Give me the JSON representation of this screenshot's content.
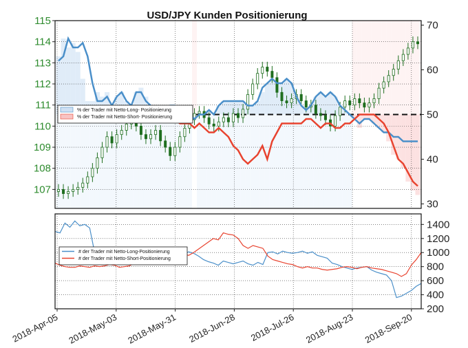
{
  "chart_data": [
    {
      "type": "line",
      "title": "USD/JPY Kunden Positionierung",
      "left_axis": {
        "ylim": [
          106.1,
          115
        ],
        "ticks": [
          107,
          108,
          109,
          110,
          111,
          112,
          113,
          114,
          115
        ],
        "color": "#2e8b2e"
      },
      "right_axis": {
        "ylim": [
          29,
          71
        ],
        "ticks": [
          30,
          40,
          50,
          60,
          70
        ]
      },
      "x_ticks": [
        "2018-Apr-05",
        "2018-May-03",
        "2018-May-31",
        "2018-Jun-28",
        "2018-Jul-26",
        "2018-Aug-23",
        "2018-Sep-20"
      ],
      "reference_line": 50,
      "price_close": [
        107.0,
        106.8,
        106.9,
        107.0,
        107.1,
        107.3,
        107.6,
        108.0,
        108.5,
        109.0,
        109.5,
        109.2,
        109.6,
        109.8,
        110.1,
        110.4,
        110.0,
        109.6,
        109.4,
        109.6,
        109.8,
        109.3,
        109.0,
        108.6,
        109.0,
        109.5,
        109.9,
        110.3,
        110.6,
        110.7,
        110.4,
        110.1,
        110.0,
        110.2,
        110.4,
        110.2,
        110.6,
        110.4,
        110.8,
        111.5,
        112.0,
        112.5,
        112.8,
        112.6,
        112.3,
        111.6,
        111.2,
        111.1,
        111.3,
        111.5,
        111.2,
        110.9,
        111.0,
        110.6,
        110.5,
        110.3,
        110.0,
        110.5,
        110.9,
        111.2,
        111.0,
        111.3,
        111.1,
        110.9,
        111.1,
        111.3,
        111.8,
        112.1,
        112.4,
        112.7,
        113.1,
        113.4,
        113.7,
        114.0,
        113.9
      ],
      "price_long_pct": [
        63,
        67,
        65,
        66,
        64,
        58,
        53,
        53,
        55,
        54,
        55,
        52,
        54,
        55,
        53,
        52,
        55,
        56,
        54,
        52,
        50,
        51,
        51,
        52,
        52,
        50,
        50,
        50,
        49,
        50,
        50,
        51,
        50,
        52,
        53,
        53,
        53,
        53,
        53,
        52,
        52,
        53,
        55,
        57,
        58,
        57,
        57,
        58,
        57,
        54,
        52,
        51,
        52,
        54,
        55,
        54,
        55,
        54,
        52,
        51,
        50,
        49,
        47,
        49,
        49,
        48,
        47,
        46,
        44,
        41,
        40,
        38,
        35,
        33,
        32
      ],
      "series": [
        {
          "name": "% der Trader  mit Netto-Long- Positionierung",
          "color": "#4a8fc9",
          "x": [
            0,
            2,
            4,
            6,
            8,
            10,
            12,
            14,
            16,
            18,
            20,
            22,
            24,
            26,
            28,
            30,
            32,
            34,
            36,
            38,
            40,
            42,
            44,
            46,
            48,
            50,
            52,
            54,
            56,
            58,
            60,
            62,
            64,
            66,
            68,
            70,
            72,
            74,
            76,
            78,
            80,
            82,
            84,
            86,
            88,
            90,
            92,
            94,
            96,
            98,
            100,
            102,
            104,
            106,
            108,
            110,
            112,
            114,
            116,
            118,
            120,
            122,
            124,
            126,
            128,
            130,
            132,
            134,
            136,
            138,
            140,
            142,
            144,
            146,
            148
          ],
          "values": [
            62,
            63,
            67,
            65,
            65,
            66,
            63,
            57,
            53,
            53,
            54,
            52,
            54,
            55,
            53,
            52,
            55,
            55,
            53,
            52,
            50,
            51,
            51,
            52,
            52,
            50,
            50,
            50,
            49,
            50,
            50,
            51,
            50,
            52,
            53,
            53,
            53,
            53,
            53,
            52,
            52,
            53,
            56,
            57,
            58,
            57,
            57,
            58,
            57,
            54,
            52,
            51,
            52,
            54,
            55,
            54,
            55,
            54,
            52,
            51,
            50,
            49,
            48,
            49,
            49,
            48,
            47,
            46,
            46,
            45,
            45,
            44,
            44,
            44,
            44
          ]
        },
        {
          "name": "% der Trader  mit Netto-Short- Positionierung",
          "color": "#e8432f",
          "x": [
            48,
            50,
            52,
            54,
            56,
            58,
            60,
            62,
            64,
            66,
            68,
            70,
            72,
            74,
            76,
            78,
            80,
            82,
            84,
            86,
            88,
            90,
            92,
            94,
            96,
            98,
            100,
            102,
            104,
            106,
            108,
            110,
            112,
            114,
            116,
            118,
            120,
            122,
            124,
            126,
            128,
            130,
            132,
            134,
            136,
            138,
            140,
            142,
            144,
            146,
            148
          ],
          "values": [
            49,
            48,
            48,
            48,
            47,
            48,
            47,
            46,
            46,
            47,
            46,
            45,
            43,
            42,
            40,
            39,
            40,
            41,
            43,
            40,
            44,
            46,
            48,
            48,
            48,
            48,
            48,
            49,
            49,
            48,
            47,
            48,
            48,
            47,
            47,
            48,
            48,
            49,
            50,
            50,
            50,
            50,
            49,
            48,
            46,
            43,
            40,
            39,
            37,
            35,
            34
          ]
        }
      ]
    },
    {
      "type": "line",
      "ylim": [
        200,
        1550
      ],
      "ticks": [
        200,
        400,
        600,
        800,
        1000,
        1200,
        1400
      ],
      "series": [
        {
          "name": "# der Trader  mit Netto-Long-Positionierung",
          "color": "#4a8fc9",
          "values": [
            1300,
            1280,
            1420,
            1360,
            1450,
            1380,
            1400,
            1350,
            1000,
            980,
            960,
            1000,
            970,
            1010,
            980,
            1000,
            950,
            980,
            1020,
            960,
            970,
            990,
            1010,
            980,
            960,
            990,
            970,
            1010,
            990,
            950,
            900,
            870,
            850,
            820,
            880,
            860,
            840,
            860,
            880,
            840,
            820,
            860,
            830,
            1000,
            1010,
            980,
            1020,
            1000,
            990,
            1000,
            1020,
            990,
            1010,
            960,
            940,
            920,
            850,
            830,
            800,
            780,
            760,
            780,
            790,
            800,
            750,
            720,
            700,
            680,
            600,
            360,
            380,
            420,
            460,
            520,
            560
          ]
        },
        {
          "name": "# der Trader  mit Netto-Short-Positionierung",
          "color": "#e8432f",
          "values": [
            850,
            820,
            800,
            790,
            790,
            810,
            800,
            790,
            810,
            800,
            810,
            830,
            820,
            790,
            800,
            810,
            850,
            860,
            870,
            880,
            860,
            870,
            880,
            900,
            930,
            970,
            980,
            960,
            1000,
            1050,
            1100,
            1150,
            1200,
            1180,
            1280,
            1260,
            1250,
            1200,
            1100,
            1060,
            1100,
            1080,
            1060,
            950,
            900,
            880,
            860,
            840,
            830,
            800,
            780,
            800,
            780,
            780,
            760,
            750,
            760,
            770,
            790,
            800,
            790,
            770,
            790,
            800,
            780,
            770,
            760,
            740,
            720,
            700,
            660,
            700,
            820,
            900,
            1000
          ]
        }
      ]
    }
  ]
}
